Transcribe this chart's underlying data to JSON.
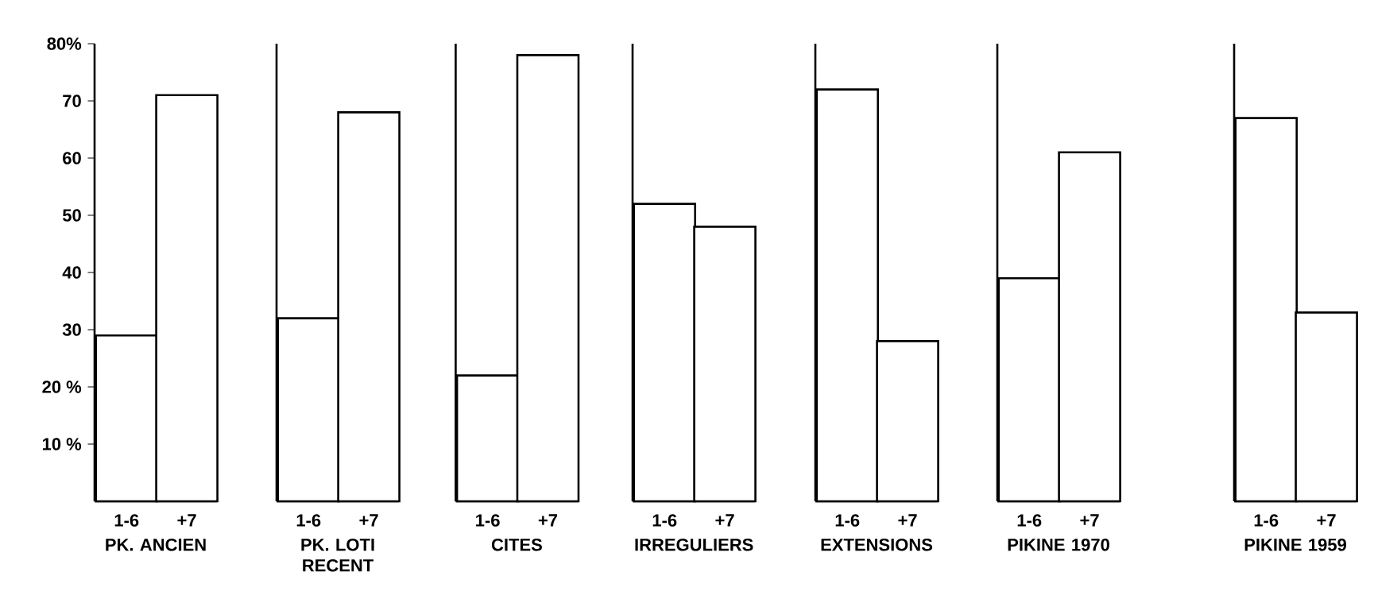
{
  "chart_data": [
    {
      "type": "bar",
      "categories": [
        "1-6",
        "+7"
      ],
      "values": [
        29,
        71
      ],
      "color": "#000000",
      "xlabel": "PK. ANCIEN",
      "ylim": [
        0,
        80
      ],
      "yticks": [
        {
          "value": 10,
          "label": "10 %"
        },
        {
          "value": 20,
          "label": "20 %"
        },
        30,
        40,
        50,
        60,
        70,
        {
          "value": 80,
          "label": "80%"
        }
      ]
    },
    {
      "type": "bar",
      "categories": [
        "1-6",
        "+7"
      ],
      "values": [
        32,
        68
      ],
      "color": "#000000",
      "xlabel": "PK. LOTI RECENT",
      "ylim": [
        0,
        80
      ],
      "tick_labels": "x"
    },
    {
      "type": "bar",
      "categories": [
        "1-6",
        "+7"
      ],
      "values": [
        22,
        78
      ],
      "color": "#000000",
      "xlabel": "CITES",
      "ylim": [
        0,
        80
      ],
      "tick_labels": "x"
    },
    {
      "type": "bar",
      "categories": [
        "1-6",
        "+7"
      ],
      "values": [
        52,
        48
      ],
      "color": "#000000",
      "xlabel": "IRREGULIERS",
      "ylim": [
        0,
        80
      ],
      "tick_labels": "x"
    },
    {
      "type": "bar",
      "categories": [
        "1-6",
        "+7"
      ],
      "values": [
        72,
        28
      ],
      "color": "#000000",
      "xlabel": "EXTENSIONS",
      "ylim": [
        0,
        80
      ],
      "tick_labels": "x"
    },
    {
      "type": "bar",
      "categories": [
        "1-6",
        "+7"
      ],
      "values": [
        39,
        61
      ],
      "color": "#000000",
      "xlabel": "PIKINE 1970",
      "ylim": [
        0,
        80
      ],
      "tick_labels": "x"
    },
    {
      "type": "bar",
      "categories": [
        "1-6",
        "+7"
      ],
      "values": [
        67,
        33
      ],
      "color": "#000000",
      "xlabel": "PIKINE 1959",
      "ylim": [
        0,
        80
      ],
      "tick_labels": "x"
    }
  ]
}
